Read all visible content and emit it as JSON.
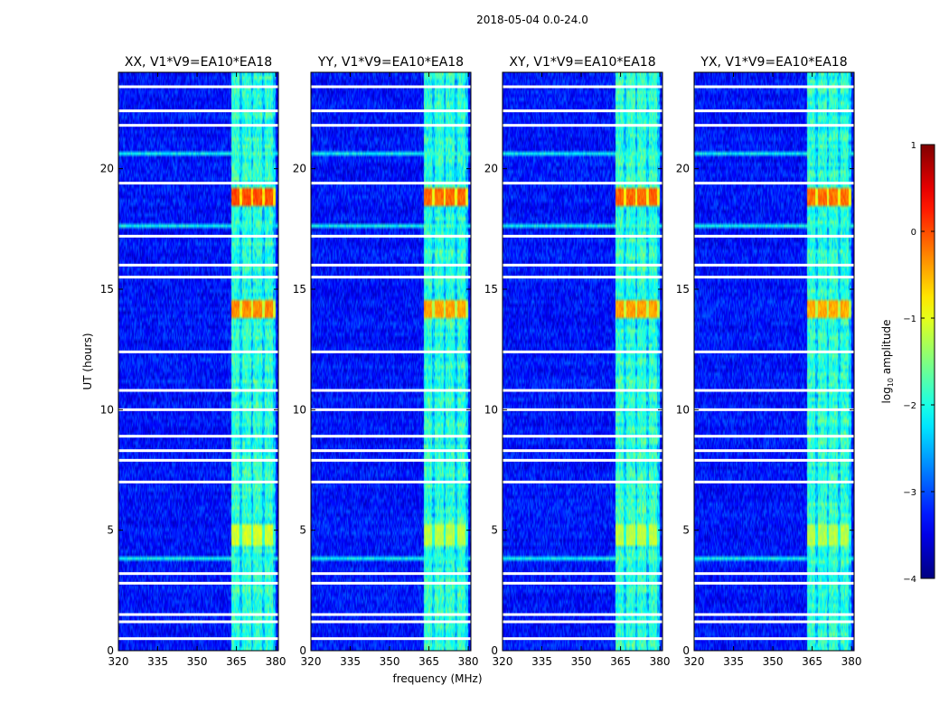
{
  "chart_data": {
    "type": "heatmap",
    "suptitle": "2018-05-04 0.0-24.0",
    "xlabel": "frequency (MHz)",
    "ylabel": "UT (hours)",
    "xlim": [
      320,
      381
    ],
    "ylim": [
      0,
      24
    ],
    "xticks": [
      320,
      335,
      350,
      365,
      380
    ],
    "yticks": [
      0,
      5,
      10,
      15,
      20
    ],
    "colorbar": {
      "label_prefix": "log",
      "label_sub": "10",
      "label_suffix": " amplitude",
      "range": [
        -4,
        1
      ],
      "ticks": [
        1,
        0,
        -1,
        -2,
        -3,
        -4
      ]
    },
    "panels": [
      {
        "title": "XX, V1*V9=EA10*EA18",
        "bright_scale": 1.0
      },
      {
        "title": "YY, V1*V9=EA10*EA18",
        "bright_scale": 0.75
      },
      {
        "title": "XY, V1*V9=EA10*EA18",
        "bright_scale": 0.8
      },
      {
        "title": "YX, V1*V9=EA10*EA18",
        "bright_scale": 0.7
      }
    ],
    "background_log_amplitude": -3.3,
    "rfi_band_mhz": [
      363,
      380
    ],
    "rfi_band_level": -1.9,
    "bright_events": [
      {
        "t_start": 18.4,
        "t_end": 19.2,
        "f_start": 363,
        "f_end": 380,
        "peak": 0.0
      },
      {
        "t_start": 13.8,
        "t_end": 14.6,
        "f_start": 363,
        "f_end": 380,
        "peak": -0.3
      },
      {
        "t_start": 4.4,
        "t_end": 5.2,
        "f_start": 363,
        "f_end": 380,
        "peak": -1.1
      }
    ],
    "broadband_rfi_rows_hours": [
      20.6,
      17.6,
      3.85
    ],
    "flagged_gaps_hours": [
      23.4,
      22.4,
      21.8,
      19.4,
      17.2,
      16.0,
      15.5,
      12.4,
      10.8,
      10.0,
      8.9,
      8.3,
      7.9,
      7.0,
      3.2,
      2.8,
      1.5,
      1.2,
      0.5
    ]
  }
}
